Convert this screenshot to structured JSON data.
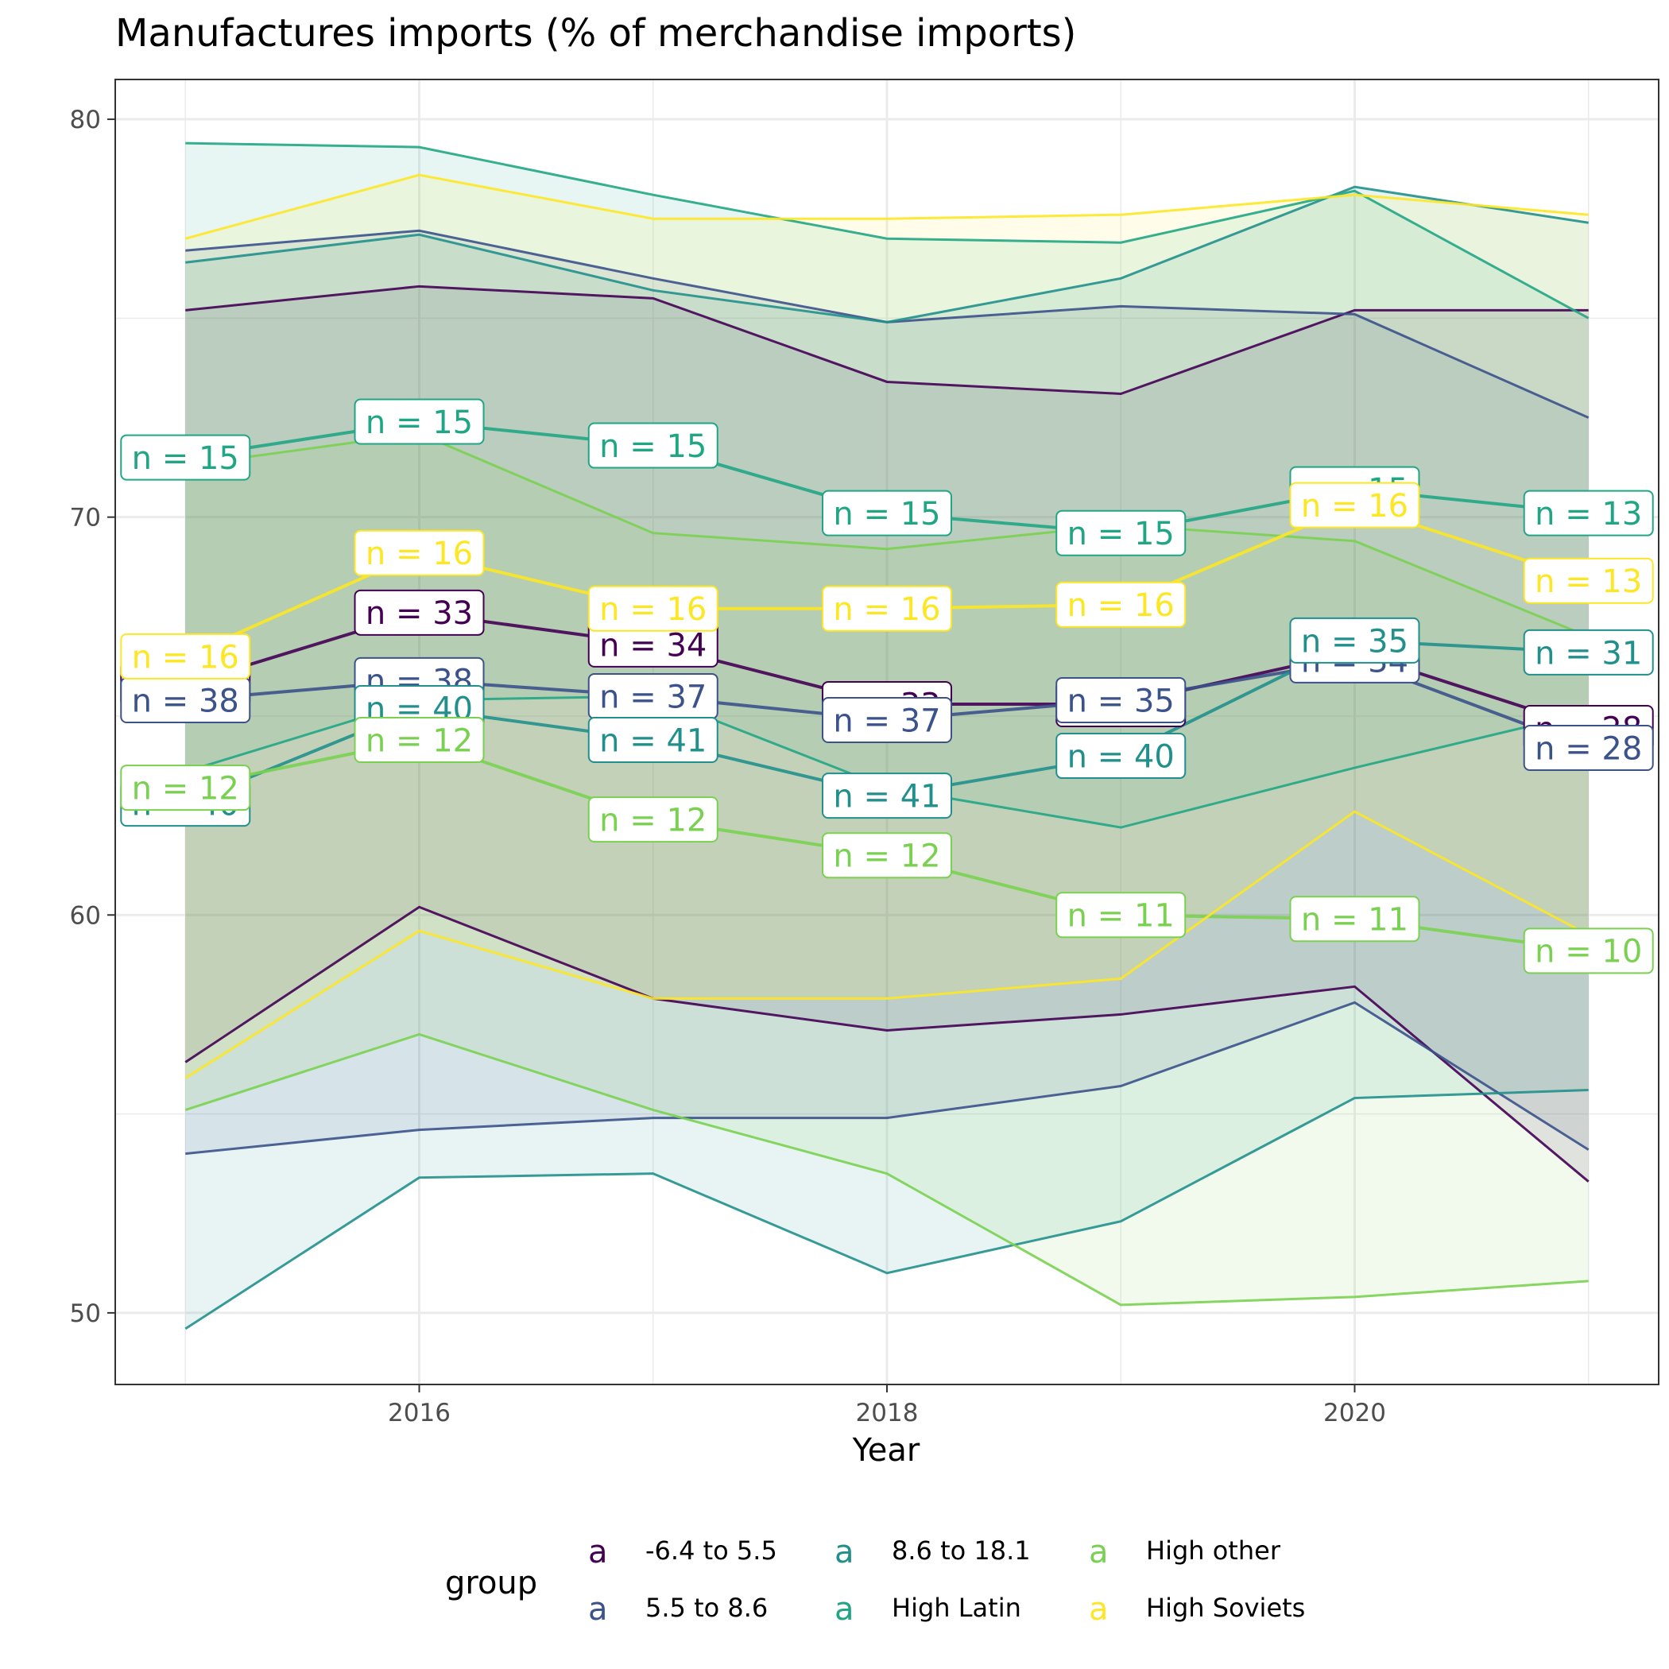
{
  "chart_data": {
    "type": "line",
    "title": "Manufactures imports (% of merchandise imports)",
    "xlabel": "Year",
    "ylabel": "",
    "xlim": [
      2014.7,
      2021.3
    ],
    "ylim": [
      48.2,
      81.0
    ],
    "x_ticks": [
      2016,
      2018,
      2020
    ],
    "x_tick_labels": [
      "2016",
      "2018",
      "2020"
    ],
    "y_ticks": [
      50,
      60,
      70,
      80
    ],
    "y_tick_labels": [
      "50",
      "60",
      "70",
      "80"
    ],
    "grid": true,
    "legend": {
      "title": "group",
      "position": "bottom",
      "key_glyph": "a"
    },
    "x": [
      2015,
      2016,
      2017,
      2018,
      2019,
      2020,
      2021
    ],
    "series": [
      {
        "name": "-6.4 to 5.5",
        "color": "#440154",
        "upper": [
          75.2,
          75.8,
          75.5,
          73.4,
          73.1,
          75.2,
          75.2
        ],
        "mean": [
          65.8,
          67.6,
          66.8,
          65.3,
          65.3,
          66.6,
          64.7
        ],
        "lower": [
          56.3,
          60.2,
          57.9,
          57.1,
          57.5,
          58.2,
          53.3
        ],
        "n": [
          38,
          33,
          34,
          33,
          35,
          34,
          28
        ]
      },
      {
        "name": "5.5 to 8.6",
        "color": "#3B528B",
        "upper": [
          76.7,
          77.2,
          76.0,
          74.9,
          75.3,
          75.1,
          72.5
        ],
        "mean": [
          65.4,
          65.9,
          65.5,
          64.9,
          65.4,
          66.4,
          64.2
        ],
        "lower": [
          54.0,
          54.6,
          54.9,
          54.9,
          55.7,
          57.8,
          54.1
        ],
        "n": [
          38,
          38,
          37,
          37,
          35,
          34,
          28
        ]
      },
      {
        "name": "8.6 to 18.1",
        "color": "#21908C",
        "upper": [
          76.4,
          77.1,
          75.7,
          74.9,
          76.0,
          78.3,
          77.4
        ],
        "mean": [
          62.8,
          65.2,
          64.4,
          63.0,
          64.0,
          66.9,
          66.6
        ],
        "lower": [
          49.6,
          53.4,
          53.5,
          51.0,
          52.3,
          55.4,
          55.6
        ],
        "n": [
          40,
          40,
          41,
          41,
          40,
          35,
          31
        ]
      },
      {
        "name": "High Latin",
        "color": "#21A685",
        "upper": [
          79.4,
          79.3,
          78.1,
          77.0,
          76.9,
          78.2,
          75.0
        ],
        "mean": [
          71.5,
          72.4,
          71.8,
          70.1,
          69.6,
          70.7,
          70.1
        ],
        "lower": [
          63.6,
          65.4,
          65.5,
          63.2,
          62.2,
          63.7,
          65.1
        ],
        "n": [
          15,
          15,
          15,
          15,
          15,
          15,
          13
        ]
      },
      {
        "name": "High other",
        "color": "#7AD151",
        "upper": [
          71.3,
          72.1,
          69.6,
          69.2,
          69.8,
          69.4,
          67.0
        ],
        "mean": [
          63.2,
          64.4,
          62.4,
          61.5,
          60.0,
          59.9,
          59.1
        ],
        "lower": [
          55.1,
          57.0,
          55.1,
          53.5,
          50.2,
          50.4,
          50.8
        ],
        "n": [
          12,
          12,
          12,
          12,
          11,
          11,
          10
        ]
      },
      {
        "name": "High Soviets",
        "color": "#FDE725",
        "upper": [
          77.0,
          78.6,
          77.5,
          77.5,
          77.6,
          78.1,
          77.6
        ],
        "mean": [
          66.5,
          69.1,
          67.7,
          67.7,
          67.8,
          70.3,
          68.4
        ],
        "lower": [
          55.9,
          59.6,
          57.9,
          57.9,
          58.4,
          62.6,
          59.5
        ],
        "n": [
          16,
          16,
          16,
          16,
          16,
          16,
          13
        ]
      }
    ]
  }
}
